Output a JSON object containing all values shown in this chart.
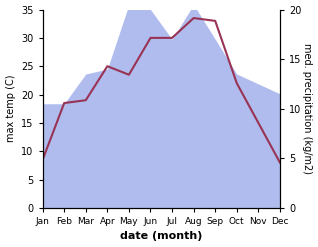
{
  "months": [
    "Jan",
    "Feb",
    "Mar",
    "Apr",
    "May",
    "Jun",
    "Jul",
    "Aug",
    "Sep",
    "Oct",
    "Nov",
    "Dec"
  ],
  "month_x": [
    0,
    1,
    2,
    3,
    4,
    5,
    6,
    7,
    8,
    9,
    10,
    11
  ],
  "temperature": [
    8.5,
    18.5,
    19.0,
    25.0,
    23.5,
    30.0,
    30.0,
    33.5,
    33.0,
    22.0,
    15.0,
    8.0
  ],
  "precipitation": [
    10.5,
    10.5,
    13.5,
    14.0,
    20.5,
    20.0,
    17.0,
    20.5,
    17.0,
    13.5,
    12.5,
    11.5
  ],
  "temp_color": "#993355",
  "precip_color": "#b0bced",
  "background_color": "#ffffff",
  "xlabel": "date (month)",
  "ylabel_left": "max temp (C)",
  "ylabel_right": "med. precipitation (kg/m2)",
  "ylim_left": [
    0,
    35
  ],
  "ylim_right": [
    0,
    20
  ],
  "yticks_left": [
    0,
    5,
    10,
    15,
    20,
    25,
    30,
    35
  ],
  "yticks_right": [
    0,
    5,
    10,
    15,
    20
  ],
  "figsize": [
    3.18,
    2.47
  ],
  "dpi": 100
}
